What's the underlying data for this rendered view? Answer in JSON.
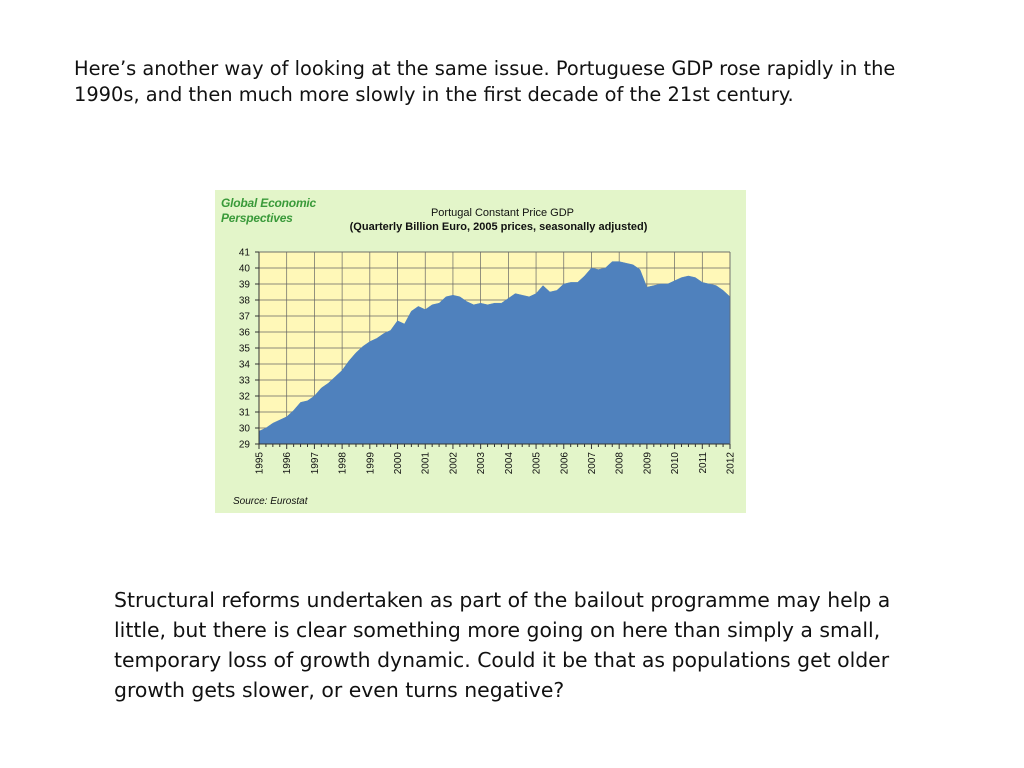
{
  "intro_text": "Here’s another way of looking at the same issue. Portuguese GDP rose rapidly in the 1990s, and then much more slowly in the first decade of the 21st century.",
  "outro_text": "Structural reforms undertaken as part of the bailout programme may help a little, but there is clear something more going on here than simply a small, temporary loss of growth dynamic. Could it be that as populations get older growth gets slower, or even turns negative?",
  "chart_data": {
    "type": "area",
    "brand_line1": "Global Economic",
    "brand_line2": "Perspectives",
    "title": "Portugal Constant Price GDP",
    "subtitle": "(Quarterly Billion Euro, 2005 prices, seasonally adjusted)",
    "source": "Source: Eurostat",
    "ylim": [
      29,
      41
    ],
    "yticks": [
      29,
      30,
      31,
      32,
      33,
      34,
      35,
      36,
      37,
      38,
      39,
      40,
      41
    ],
    "xticks": [
      "1995",
      "1996",
      "1997",
      "1998",
      "1999",
      "2000",
      "2001",
      "2002",
      "2003",
      "2004",
      "2005",
      "2006",
      "2007",
      "2008",
      "2009",
      "2010",
      "2011",
      "2012"
    ],
    "grid": true,
    "fill_color": "#4f81bd",
    "plot_background": "#fff8b8",
    "panel_background": "#e3f5c9",
    "x": [
      1995.0,
      1995.25,
      1995.5,
      1995.75,
      1996.0,
      1996.25,
      1996.5,
      1996.75,
      1997.0,
      1997.25,
      1997.5,
      1997.75,
      1998.0,
      1998.25,
      1998.5,
      1998.75,
      1999.0,
      1999.25,
      1999.5,
      1999.75,
      2000.0,
      2000.25,
      2000.5,
      2000.75,
      2001.0,
      2001.25,
      2001.5,
      2001.75,
      2002.0,
      2002.25,
      2002.5,
      2002.75,
      2003.0,
      2003.25,
      2003.5,
      2003.75,
      2004.0,
      2004.25,
      2004.5,
      2004.75,
      2005.0,
      2005.25,
      2005.5,
      2005.75,
      2006.0,
      2006.25,
      2006.5,
      2006.75,
      2007.0,
      2007.25,
      2007.5,
      2007.75,
      2008.0,
      2008.25,
      2008.5,
      2008.75,
      2009.0,
      2009.25,
      2009.5,
      2009.75,
      2010.0,
      2010.25,
      2010.5,
      2010.75,
      2011.0,
      2011.25,
      2011.5,
      2011.75,
      2012.0
    ],
    "values": [
      29.8,
      30.0,
      30.3,
      30.5,
      30.7,
      31.1,
      31.6,
      31.7,
      32.0,
      32.5,
      32.8,
      33.2,
      33.6,
      34.2,
      34.7,
      35.1,
      35.4,
      35.6,
      35.9,
      36.1,
      36.7,
      36.5,
      37.3,
      37.6,
      37.4,
      37.7,
      37.8,
      38.2,
      38.3,
      38.2,
      37.9,
      37.7,
      37.8,
      37.7,
      37.8,
      37.8,
      38.1,
      38.4,
      38.3,
      38.2,
      38.4,
      38.9,
      38.5,
      38.6,
      39.0,
      39.1,
      39.1,
      39.5,
      40.0,
      39.9,
      40.0,
      40.4,
      40.4,
      40.3,
      40.2,
      39.9,
      38.8,
      38.9,
      39.0,
      39.0,
      39.2,
      39.4,
      39.5,
      39.4,
      39.1,
      39.0,
      38.9,
      38.6,
      38.2
    ]
  }
}
